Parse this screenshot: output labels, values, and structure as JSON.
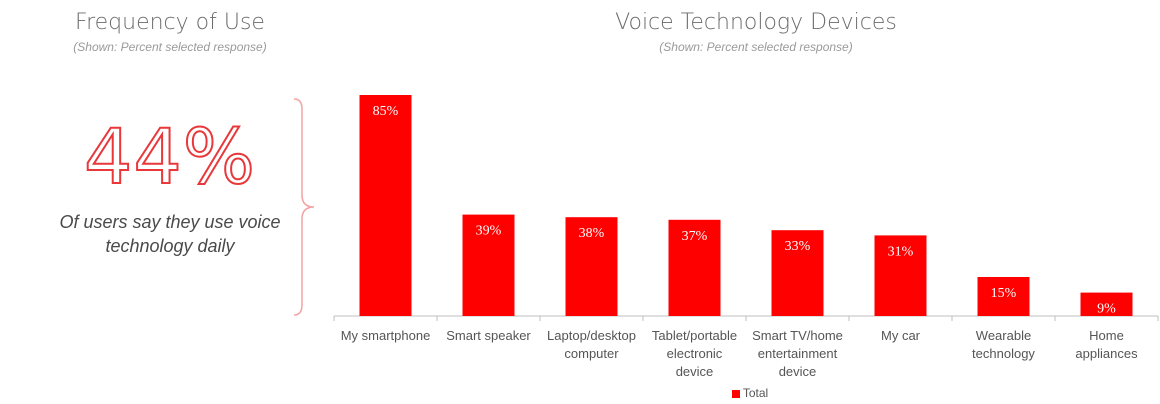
{
  "left_panel": {
    "title": "Frequency of Use",
    "subtitle": "(Shown: Percent selected response)",
    "stat": "44%",
    "caption_lines": [
      "Of users say they use voice",
      "technology daily"
    ]
  },
  "colors": {
    "accent": "#ff0000",
    "stat_outline": "#e8383a",
    "axis": "#bfbfbf",
    "brace": "#f2a3a3"
  },
  "chart_data": {
    "type": "bar",
    "title": "Voice Technology Devices",
    "subtitle": "(Shown: Percent selected response)",
    "categories": [
      [
        "My smartphone"
      ],
      [
        "Smart speaker"
      ],
      [
        "Laptop/desktop",
        "computer"
      ],
      [
        "Tablet/portable",
        "electronic",
        "device"
      ],
      [
        "Smart TV/home",
        "entertainment",
        "device"
      ],
      [
        "My car"
      ],
      [
        "Wearable",
        "technology"
      ],
      [
        "Home",
        "appliances"
      ]
    ],
    "series": [
      {
        "name": "Total",
        "values": [
          85,
          39,
          38,
          37,
          33,
          31,
          15,
          9
        ],
        "labels": [
          "85%",
          "39%",
          "38%",
          "37%",
          "33%",
          "31%",
          "15%",
          "9%"
        ]
      }
    ],
    "ylim": [
      0,
      100
    ],
    "grid": false,
    "legend": "bottom-center"
  }
}
